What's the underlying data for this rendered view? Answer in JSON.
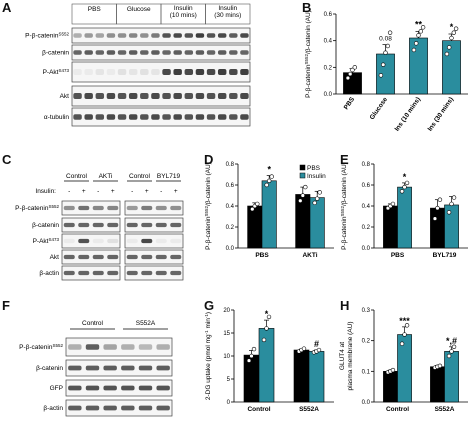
{
  "panels": {
    "A": {
      "letter": "A",
      "groups": [
        "PBS",
        "Glucose",
        "Insulin\n(10 mins)",
        "Insulin\n(30 mins)"
      ],
      "rows": [
        "P-β-catenin",
        "β-catenin",
        "P-Akt",
        "Akt",
        "α-tubulin"
      ],
      "row_sup": [
        "S552",
        "",
        "S473",
        "",
        ""
      ]
    },
    "C": {
      "letter": "C",
      "groups": [
        "Control",
        "AKTi",
        "Control",
        "BYL719"
      ],
      "insulin_label": "Insulin:",
      "insulin_signs": [
        "-",
        "+",
        "-",
        "+",
        "-",
        "+",
        "-",
        "+"
      ],
      "rows": [
        "P-β-catenin",
        "β-catenin",
        "P-Akt",
        "Akt",
        "β-actin"
      ],
      "row_sup": [
        "S552",
        "",
        "S473",
        "",
        ""
      ]
    },
    "F": {
      "letter": "F",
      "groups": [
        "Control",
        "S552A"
      ],
      "rows": [
        "P-β-catenin",
        "β-catenin",
        "GFP",
        "β-actin"
      ],
      "row_sup": [
        "S552",
        "",
        "",
        ""
      ]
    }
  },
  "chart_data": [
    {
      "letter": "B",
      "type": "bar",
      "ylabel": "P-β-catenin",
      "ylabel_sup": "S552",
      "ylabel_rest": "/β-catenin (AU)",
      "categories": [
        "PBS",
        "Glucose",
        "Ins (10 mins)",
        "Ins (30 mins)"
      ],
      "values": [
        0.16,
        0.3,
        0.42,
        0.4
      ],
      "errors": [
        0.03,
        0.07,
        0.05,
        0.05
      ],
      "points": [
        [
          0.12,
          0.15,
          0.18,
          0.2
        ],
        [
          0.14,
          0.22,
          0.31,
          0.36,
          0.46
        ],
        [
          0.33,
          0.38,
          0.44,
          0.47,
          0.5
        ],
        [
          0.3,
          0.35,
          0.42,
          0.46,
          0.49
        ]
      ],
      "colors": [
        "#000000",
        "#2a8d9e",
        "#2a8d9e",
        "#2a8d9e"
      ],
      "annotations": [
        "",
        "0.08",
        "**",
        "*"
      ],
      "ylim": [
        0,
        0.6
      ],
      "yticks": [
        "0.0",
        "0.2",
        "0.4",
        "0.6"
      ]
    },
    {
      "letter": "D",
      "type": "bar",
      "ylabel": "P-β-catenin",
      "ylabel_sup": "S552",
      "ylabel_rest": "/β-catenin (AU)",
      "categories": [
        "PBS",
        "AKTi"
      ],
      "series": [
        {
          "name": "PBS",
          "values": [
            0.4,
            0.51
          ]
        },
        {
          "name": "Insulin",
          "values": [
            0.64,
            0.48
          ]
        }
      ],
      "errors": [
        [
          0.03,
          0.07
        ],
        [
          0.05,
          0.06
        ]
      ],
      "points": [
        [
          [
            0.37,
            0.4,
            0.42
          ],
          [
            0.45,
            0.5,
            0.58
          ]
        ],
        [
          [
            0.6,
            0.64,
            0.68
          ],
          [
            0.43,
            0.47,
            0.53
          ]
        ]
      ],
      "colors": [
        "#000000",
        "#2a8d9e"
      ],
      "annotations": [
        [
          "",
          ""
        ],
        [
          "*",
          ""
        ]
      ],
      "legend": "top-right",
      "ylim": [
        0,
        0.8
      ],
      "yticks": [
        "0.0",
        "0.2",
        "0.4",
        "0.6",
        "0.8"
      ]
    },
    {
      "letter": "E",
      "type": "bar",
      "ylabel": "P-β-catenin",
      "ylabel_sup": "S552",
      "ylabel_rest": "/β-catenin (AU)",
      "categories": [
        "PBS",
        "BYL719"
      ],
      "series": [
        {
          "name": "PBS",
          "values": [
            0.4,
            0.38
          ]
        },
        {
          "name": "Insulin",
          "values": [
            0.58,
            0.41
          ]
        }
      ],
      "errors": [
        [
          0.02,
          0.08
        ],
        [
          0.04,
          0.08
        ]
      ],
      "points": [
        [
          [
            0.38,
            0.4,
            0.42
          ],
          [
            0.28,
            0.38,
            0.46
          ]
        ],
        [
          [
            0.54,
            0.58,
            0.62
          ],
          [
            0.34,
            0.42,
            0.48
          ]
        ]
      ],
      "colors": [
        "#000000",
        "#2a8d9e"
      ],
      "annotations": [
        [
          "",
          ""
        ],
        [
          "*",
          ""
        ]
      ],
      "ylim": [
        0,
        0.8
      ],
      "yticks": [
        "0.0",
        "0.2",
        "0.4",
        "0.6",
        "0.8"
      ]
    },
    {
      "letter": "G",
      "type": "bar",
      "ylabel": "2-DG uptake (pmol mg",
      "ylabel_sup": "-1",
      "ylabel_rest": " min",
      "ylabel_sup2": "-1",
      "ylabel_end": ")",
      "categories": [
        "Control",
        "S552A"
      ],
      "series": [
        {
          "name": "PBS",
          "values": [
            10.2,
            11.3
          ]
        },
        {
          "name": "Insulin",
          "values": [
            16.0,
            11.0
          ]
        }
      ],
      "errors": [
        [
          1.0,
          0.2
        ],
        [
          1.8,
          0.3
        ]
      ],
      "points": [
        [
          [
            9.0,
            10.0,
            11.5
          ],
          [
            11.0,
            11.3,
            11.6
          ]
        ],
        [
          [
            13.5,
            16.0,
            18.5
          ],
          [
            10.8,
            11.0,
            11.3
          ]
        ]
      ],
      "colors": [
        "#000000",
        "#2a8d9e"
      ],
      "annotations": [
        [
          "",
          ""
        ],
        [
          "*",
          "#"
        ]
      ],
      "ylim": [
        0,
        20
      ],
      "yticks": [
        "0",
        "5",
        "10",
        "15",
        "20"
      ]
    },
    {
      "letter": "H",
      "type": "bar",
      "ylabel": "GLUT4 at",
      "ylabel2": "plasma membrane (AU)",
      "categories": [
        "Control",
        "S552A"
      ],
      "series": [
        {
          "name": "PBS",
          "values": [
            0.1,
            0.115
          ]
        },
        {
          "name": "Insulin",
          "values": [
            0.22,
            0.165
          ]
        }
      ],
      "errors": [
        [
          0.004,
          0.004
        ],
        [
          0.025,
          0.015
        ]
      ],
      "points": [
        [
          [
            0.097,
            0.1,
            0.104
          ],
          [
            0.112,
            0.115,
            0.118
          ]
        ],
        [
          [
            0.19,
            0.22,
            0.25
          ],
          [
            0.15,
            0.165,
            0.18
          ]
        ]
      ],
      "colors": [
        "#000000",
        "#2a8d9e"
      ],
      "annotations": [
        [
          "",
          ""
        ],
        [
          "***",
          "*,#"
        ]
      ],
      "ylim": [
        0,
        0.3
      ],
      "yticks": [
        "0.0",
        "0.1",
        "0.2",
        "0.3"
      ]
    }
  ]
}
